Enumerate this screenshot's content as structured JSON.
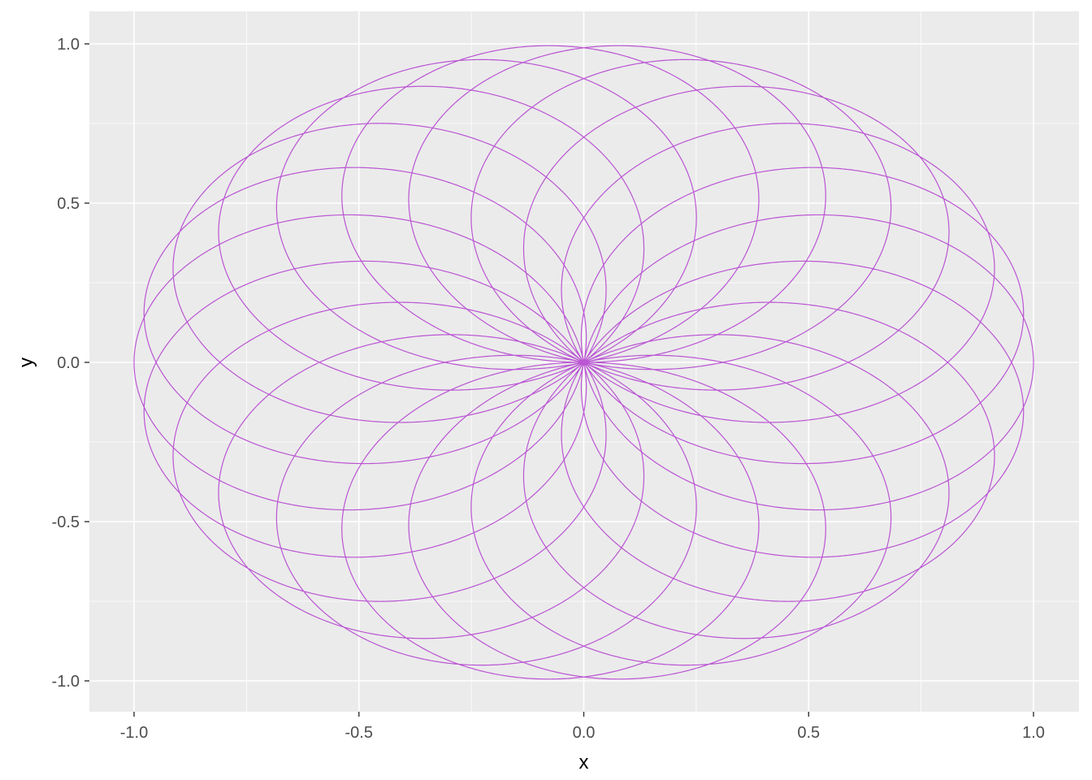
{
  "chart_data": {
    "type": "line",
    "title": "",
    "xlabel": "x",
    "ylabel": "y",
    "xlim": [
      -1.0,
      1.0
    ],
    "ylim": [
      -1.0,
      1.0
    ],
    "x_ticks": [
      "-1.0",
      "-0.5",
      "0.0",
      "0.5",
      "1.0"
    ],
    "y_ticks": [
      "1.0",
      "0.5",
      "0.0",
      "-0.5",
      "-1.0"
    ],
    "grid": true,
    "legend": "none",
    "line_color": "#BA55D3",
    "panel_color": "#EBEBEB",
    "grid_color": "#FFFFFF",
    "curve": {
      "description": "rose curve r = sin(k*theta), k = 1.1, theta from 0 to 20*pi, x = r*cos(theta), y = r*sin(theta)",
      "k": 1.1,
      "theta_max_pi": 20
    }
  }
}
